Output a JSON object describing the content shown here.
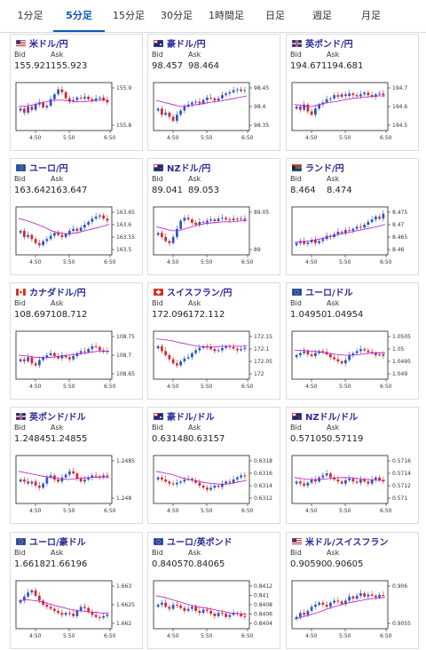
{
  "tabs": [
    "1分足",
    "5分足",
    "15分足",
    "30分足",
    "1時間足",
    "日足",
    "週足",
    "月足"
  ],
  "active_tab": 1,
  "labels": {
    "bid": "Bid",
    "ask": "Ask"
  },
  "colors": {
    "up": "#2e55c9",
    "down": "#d9252a",
    "ma": "#b516c8",
    "frame": "#222222",
    "pair": "#2a2a9a",
    "active_tab": "#0a5ab4"
  },
  "cards": [
    {
      "pair": "米ドル/円",
      "flag": "us",
      "bid": "155.921",
      "ask": "155.923",
      "yticks": [
        "155.9",
        "155.8"
      ],
      "xticks": [
        "4:50",
        "5:50",
        "6:50"
      ],
      "series": [
        0.45,
        0.35,
        0.5,
        0.42,
        0.55,
        0.6,
        0.48,
        0.52,
        0.68,
        0.8,
        0.92,
        0.85,
        0.7,
        0.62,
        0.66,
        0.72,
        0.7,
        0.74,
        0.68,
        0.64,
        0.7,
        0.72,
        0.66,
        0.6
      ],
      "ma": [
        0.5,
        0.52,
        0.55,
        0.6,
        0.65,
        0.66,
        0.64,
        0.62,
        0.62,
        0.64,
        0.66,
        0.65
      ]
    },
    {
      "pair": "豪ドル/円",
      "flag": "au",
      "bid": "98.457",
      "ask": "98.464",
      "yticks": [
        "98.45",
        "98.4",
        "98.35"
      ],
      "xticks": [
        "4:50",
        "5:50",
        "6:50"
      ],
      "series": [
        0.45,
        0.3,
        0.35,
        0.25,
        0.15,
        0.3,
        0.4,
        0.5,
        0.55,
        0.6,
        0.62,
        0.58,
        0.66,
        0.72,
        0.7,
        0.65,
        0.7,
        0.78,
        0.82,
        0.85,
        0.9,
        0.92,
        0.88,
        0.9
      ],
      "ma": [
        0.65,
        0.6,
        0.55,
        0.5,
        0.52,
        0.55,
        0.58,
        0.62,
        0.64,
        0.68,
        0.72,
        0.76
      ]
    },
    {
      "pair": "英ポンド/円",
      "flag": "gb",
      "bid": "194.671",
      "ask": "194.681",
      "yticks": [
        "194.7",
        "194.6",
        "194.5"
      ],
      "xticks": [
        "4:50",
        "5:50",
        "6:50"
      ],
      "series": [
        0.5,
        0.42,
        0.55,
        0.38,
        0.3,
        0.45,
        0.55,
        0.6,
        0.68,
        0.7,
        0.78,
        0.74,
        0.8,
        0.76,
        0.82,
        0.78,
        0.75,
        0.8,
        0.84,
        0.78,
        0.74,
        0.8,
        0.82,
        0.78
      ],
      "ma": [
        0.55,
        0.52,
        0.5,
        0.55,
        0.6,
        0.62,
        0.66,
        0.7,
        0.72,
        0.74,
        0.76,
        0.76
      ]
    },
    {
      "pair": "ユーロ/円",
      "flag": "eu",
      "bid": "163.642",
      "ask": "163.647",
      "yticks": [
        "163.65",
        "163.6",
        "163.55",
        "163.5"
      ],
      "xticks": [
        "4:50",
        "5:50",
        "6:50"
      ],
      "series": [
        0.5,
        0.35,
        0.4,
        0.3,
        0.2,
        0.15,
        0.25,
        0.3,
        0.38,
        0.45,
        0.4,
        0.35,
        0.42,
        0.5,
        0.55,
        0.5,
        0.58,
        0.65,
        0.72,
        0.8,
        0.85,
        0.88,
        0.8,
        0.75
      ],
      "ma": [
        0.8,
        0.75,
        0.68,
        0.6,
        0.5,
        0.45,
        0.42,
        0.45,
        0.5,
        0.55,
        0.6,
        0.66
      ]
    },
    {
      "pair": "NZドル/円",
      "flag": "nz",
      "bid": "89.041",
      "ask": "89.053",
      "yticks": [
        "89.05",
        "89"
      ],
      "xticks": [
        "4:50",
        "5:50",
        "6:50"
      ],
      "series": [
        0.45,
        0.35,
        0.25,
        0.2,
        0.35,
        0.55,
        0.75,
        0.82,
        0.78,
        0.7,
        0.65,
        0.72,
        0.7,
        0.75,
        0.78,
        0.74,
        0.8,
        0.82,
        0.78,
        0.76,
        0.8,
        0.78,
        0.8,
        0.76
      ],
      "ma": [
        0.6,
        0.55,
        0.5,
        0.52,
        0.58,
        0.64,
        0.68,
        0.7,
        0.72,
        0.72,
        0.74,
        0.75
      ]
    },
    {
      "pair": "ランド/円",
      "flag": "za",
      "bid": "8.464",
      "ask": "8.474",
      "yticks": [
        "8.475",
        "8.47",
        "8.465",
        "8.46"
      ],
      "xticks": [
        "4:50",
        "5:50",
        "6:50"
      ],
      "series": [
        0.2,
        0.25,
        0.18,
        0.22,
        0.28,
        0.2,
        0.25,
        0.3,
        0.38,
        0.35,
        0.42,
        0.48,
        0.45,
        0.52,
        0.5,
        0.55,
        0.6,
        0.58,
        0.65,
        0.72,
        0.78,
        0.85,
        0.8,
        0.92
      ],
      "ma": [
        0.22,
        0.24,
        0.26,
        0.3,
        0.34,
        0.4,
        0.44,
        0.48,
        0.52,
        0.56,
        0.6,
        0.66
      ]
    },
    {
      "pair": "カナダドル/円",
      "flag": "ca",
      "bid": "108.697",
      "ask": "108.712",
      "yticks": [
        "108.75",
        "108.7",
        "108.65"
      ],
      "xticks": [
        "4:50",
        "5:50",
        "6:50"
      ],
      "series": [
        0.4,
        0.35,
        0.45,
        0.3,
        0.25,
        0.38,
        0.45,
        0.5,
        0.55,
        0.48,
        0.42,
        0.5,
        0.45,
        0.4,
        0.48,
        0.55,
        0.6,
        0.58,
        0.65,
        0.72,
        0.7,
        0.62,
        0.58,
        0.6
      ],
      "ma": [
        0.5,
        0.48,
        0.45,
        0.44,
        0.45,
        0.47,
        0.5,
        0.52,
        0.55,
        0.58,
        0.6,
        0.6
      ]
    },
    {
      "pair": "スイスフラン/円",
      "flag": "ch",
      "bid": "172.096",
      "ask": "172.112",
      "yticks": [
        "172.15",
        "172.1",
        "172.05",
        "172"
      ],
      "xticks": [
        "4:50",
        "5:50",
        "6:50"
      ],
      "series": [
        0.72,
        0.6,
        0.5,
        0.4,
        0.3,
        0.25,
        0.35,
        0.42,
        0.45,
        0.55,
        0.62,
        0.68,
        0.72,
        0.7,
        0.65,
        0.6,
        0.62,
        0.68,
        0.72,
        0.7,
        0.66,
        0.62,
        0.65,
        0.68
      ],
      "ma": [
        0.9,
        0.88,
        0.85,
        0.8,
        0.76,
        0.72,
        0.7,
        0.7,
        0.72,
        0.72,
        0.72,
        0.72
      ]
    },
    {
      "pair": "ユーロ/ドル",
      "flag": "eu",
      "bid": "1.04950",
      "ask": "1.04954",
      "yticks": [
        "1.0505",
        "1.05",
        "1.0495",
        "1.049"
      ],
      "xticks": [
        "4:50",
        "5:50",
        "6:50"
      ],
      "series": [
        0.5,
        0.55,
        0.6,
        0.52,
        0.48,
        0.55,
        0.6,
        0.58,
        0.52,
        0.45,
        0.4,
        0.35,
        0.3,
        0.38,
        0.5,
        0.55,
        0.6,
        0.65,
        0.62,
        0.58,
        0.55,
        0.5,
        0.52,
        0.48
      ],
      "ma": [
        0.62,
        0.62,
        0.6,
        0.58,
        0.55,
        0.52,
        0.5,
        0.5,
        0.52,
        0.55,
        0.56,
        0.55
      ]
    },
    {
      "pair": "英ポンド/ドル",
      "flag": "gb",
      "bid": "1.24845",
      "ask": "1.24855",
      "yticks": [
        "1.2485",
        "1.248"
      ],
      "xticks": [
        "4:50",
        "5:50",
        "6:50"
      ],
      "series": [
        0.5,
        0.45,
        0.4,
        0.45,
        0.35,
        0.3,
        0.4,
        0.55,
        0.6,
        0.5,
        0.45,
        0.55,
        0.62,
        0.7,
        0.65,
        0.52,
        0.45,
        0.5,
        0.55,
        0.6,
        0.58,
        0.55,
        0.6,
        0.58
      ],
      "ma": [
        0.7,
        0.66,
        0.62,
        0.58,
        0.55,
        0.52,
        0.5,
        0.52,
        0.54,
        0.55,
        0.56,
        0.56
      ]
    },
    {
      "pair": "豪ドル/ドル",
      "flag": "au",
      "bid": "0.63148",
      "ask": "0.63157",
      "yticks": [
        "0.6318",
        "0.6316",
        "0.6314",
        "0.6312"
      ],
      "xticks": [
        "4:50",
        "5:50",
        "6:50"
      ],
      "series": [
        0.55,
        0.5,
        0.45,
        0.4,
        0.38,
        0.42,
        0.45,
        0.5,
        0.52,
        0.48,
        0.42,
        0.35,
        0.3,
        0.25,
        0.3,
        0.35,
        0.32,
        0.4,
        0.45,
        0.42,
        0.5,
        0.55,
        0.6,
        0.58
      ],
      "ma": [
        0.7,
        0.66,
        0.62,
        0.55,
        0.5,
        0.46,
        0.42,
        0.4,
        0.38,
        0.4,
        0.44,
        0.48
      ]
    },
    {
      "pair": "NZドル/ドル",
      "flag": "nz",
      "bid": "0.57105",
      "ask": "0.57119",
      "yticks": [
        "0.5716",
        "0.5714",
        "0.5712",
        "0.571"
      ],
      "xticks": [
        "4:50",
        "5:50",
        "6:50"
      ],
      "series": [
        0.45,
        0.4,
        0.35,
        0.42,
        0.5,
        0.45,
        0.55,
        0.6,
        0.65,
        0.55,
        0.5,
        0.45,
        0.4,
        0.48,
        0.52,
        0.45,
        0.42,
        0.5,
        0.45,
        0.4,
        0.5,
        0.55,
        0.48,
        0.45
      ],
      "ma": [
        0.55,
        0.52,
        0.5,
        0.5,
        0.52,
        0.54,
        0.55,
        0.54,
        0.52,
        0.5,
        0.48,
        0.48
      ]
    },
    {
      "pair": "ユーロ/豪ドル",
      "flag": "eu",
      "bid": "1.66182",
      "ask": "1.66196",
      "yticks": [
        "1.663",
        "1.6625",
        "1.662"
      ],
      "xticks": [
        "4:50",
        "5:50",
        "6:50"
      ],
      "series": [
        0.6,
        0.7,
        0.8,
        0.85,
        0.72,
        0.6,
        0.5,
        0.45,
        0.4,
        0.35,
        0.3,
        0.25,
        0.3,
        0.28,
        0.22,
        0.35,
        0.45,
        0.42,
        0.32,
        0.25,
        0.2,
        0.18,
        0.22,
        0.25
      ],
      "ma": [
        0.6,
        0.62,
        0.6,
        0.56,
        0.5,
        0.45,
        0.4,
        0.36,
        0.34,
        0.32,
        0.3,
        0.28
      ]
    },
    {
      "pair": "ユーロ/英ポンド",
      "flag": "eu",
      "bid": "0.84057",
      "ask": "0.84065",
      "yticks": [
        "0.8412",
        "0.841",
        "0.8408",
        "0.8406",
        "0.8404"
      ],
      "xticks": [
        "4:50",
        "5:50",
        "6:50"
      ],
      "series": [
        0.5,
        0.55,
        0.45,
        0.4,
        0.5,
        0.48,
        0.42,
        0.35,
        0.4,
        0.45,
        0.35,
        0.3,
        0.38,
        0.35,
        0.28,
        0.22,
        0.3,
        0.28,
        0.2,
        0.25,
        0.3,
        0.28,
        0.22,
        0.2
      ],
      "ma": [
        0.72,
        0.68,
        0.62,
        0.56,
        0.5,
        0.45,
        0.42,
        0.38,
        0.34,
        0.3,
        0.28,
        0.26
      ]
    },
    {
      "pair": "米ドル/スイスフラン",
      "flag": "us",
      "bid": "0.90590",
      "ask": "0.90605",
      "yticks": [
        "0.906",
        "0.9055"
      ],
      "xticks": [
        "4:50",
        "5:50",
        "6:50"
      ],
      "series": [
        0.2,
        0.3,
        0.25,
        0.35,
        0.45,
        0.5,
        0.55,
        0.5,
        0.45,
        0.55,
        0.6,
        0.58,
        0.52,
        0.6,
        0.7,
        0.65,
        0.72,
        0.78,
        0.7,
        0.75,
        0.72,
        0.68,
        0.74,
        0.72
      ],
      "ma": [
        0.15,
        0.2,
        0.26,
        0.32,
        0.4,
        0.46,
        0.52,
        0.56,
        0.6,
        0.64,
        0.66,
        0.68
      ]
    }
  ]
}
